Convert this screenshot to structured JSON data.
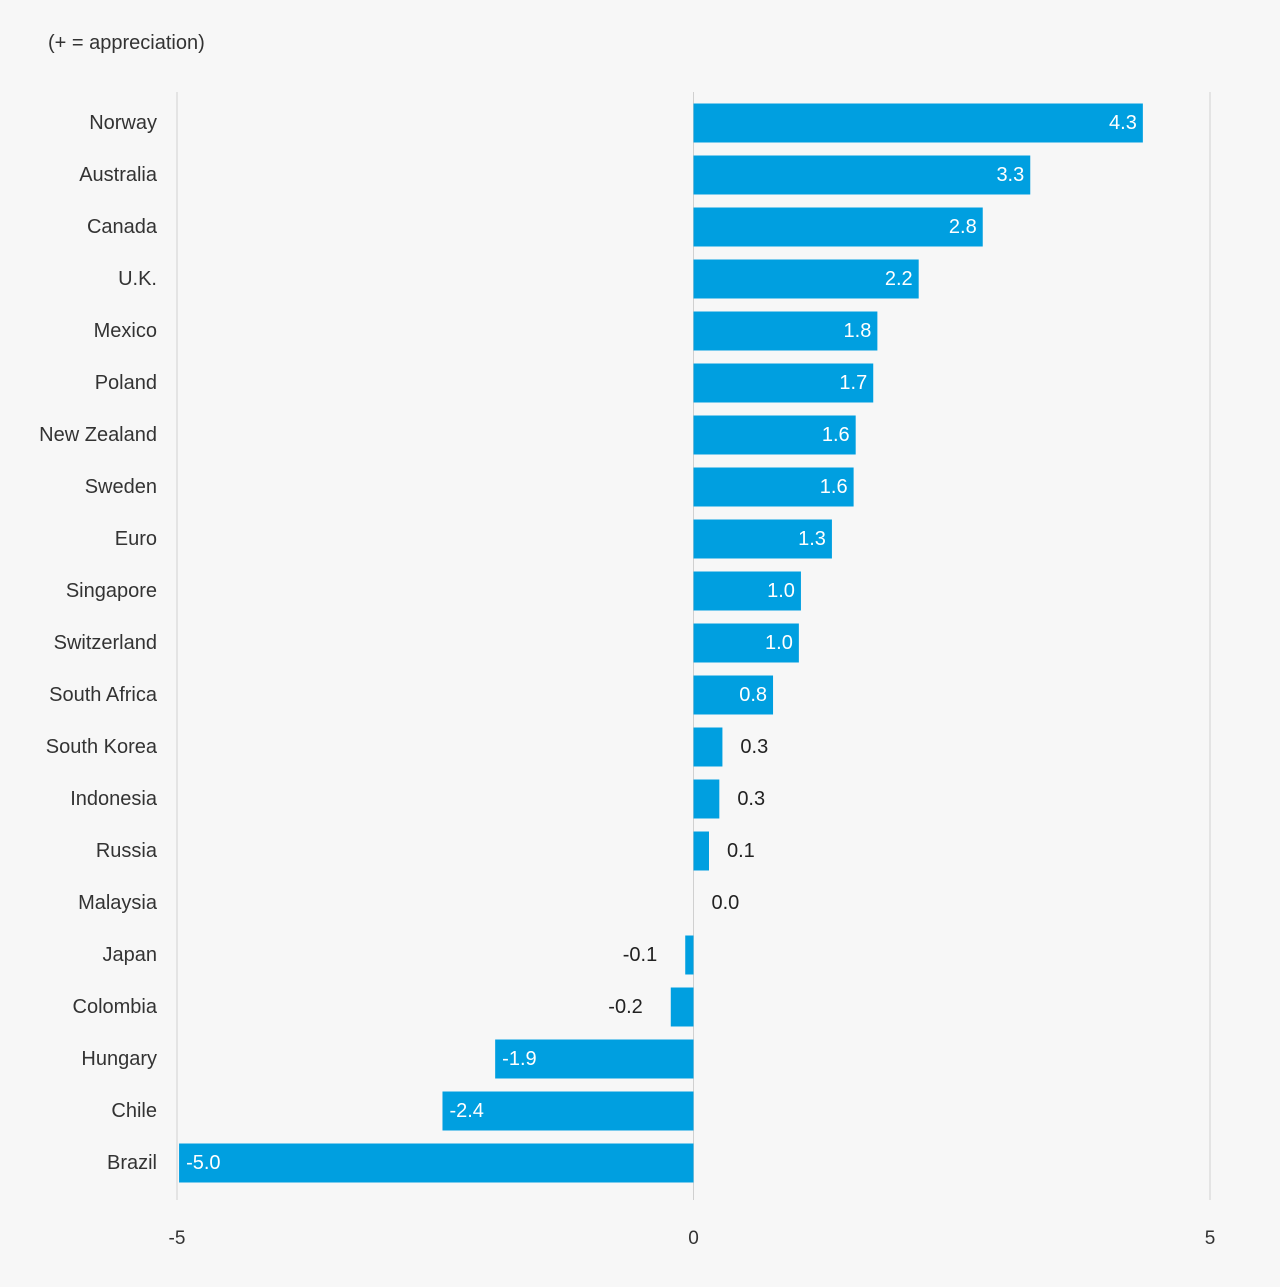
{
  "subtitle": "(+ = appreciation)",
  "colors": {
    "bar": "#009fe0",
    "background": "#f7f7f7",
    "grid": "#d0d0d0",
    "label_inside": "#ffffff",
    "label_outside": "#222222",
    "text": "#333333"
  },
  "chart_data": {
    "type": "bar",
    "orientation": "horizontal",
    "title": "",
    "subtitle": "(+ = appreciation)",
    "xlabel": "",
    "ylabel": "",
    "xlim": [
      -5,
      5
    ],
    "xticks": [
      -5,
      0,
      5
    ],
    "xtick_labels": [
      "-5",
      "0",
      "5"
    ],
    "grid": true,
    "legend": "none",
    "categories": [
      "Norway",
      "Australia",
      "Canada",
      "U.K.",
      "Mexico",
      "Poland",
      "New Zealand",
      "Sweden",
      "Euro",
      "Singapore",
      "Switzerland",
      "South Africa",
      "South Korea",
      "Indonesia",
      "Russia",
      "Malaysia",
      "Japan",
      "Colombia",
      "Hungary",
      "Chile",
      "Brazil"
    ],
    "values": [
      4.35,
      3.26,
      2.8,
      2.18,
      1.78,
      1.74,
      1.57,
      1.55,
      1.34,
      1.04,
      1.02,
      0.77,
      0.28,
      0.25,
      0.15,
      0.0,
      -0.08,
      -0.22,
      -1.92,
      -2.43,
      -4.98
    ],
    "value_labels": [
      "4.3",
      "3.3",
      "2.8",
      "2.2",
      "1.8",
      "1.7",
      "1.6",
      "1.6",
      "1.3",
      "1.0",
      "1.0",
      "0.8",
      "0.3",
      "0.3",
      "0.1",
      "0.0",
      "-0.1",
      "-0.2",
      "-1.9",
      "-2.4",
      "-5.0"
    ]
  }
}
